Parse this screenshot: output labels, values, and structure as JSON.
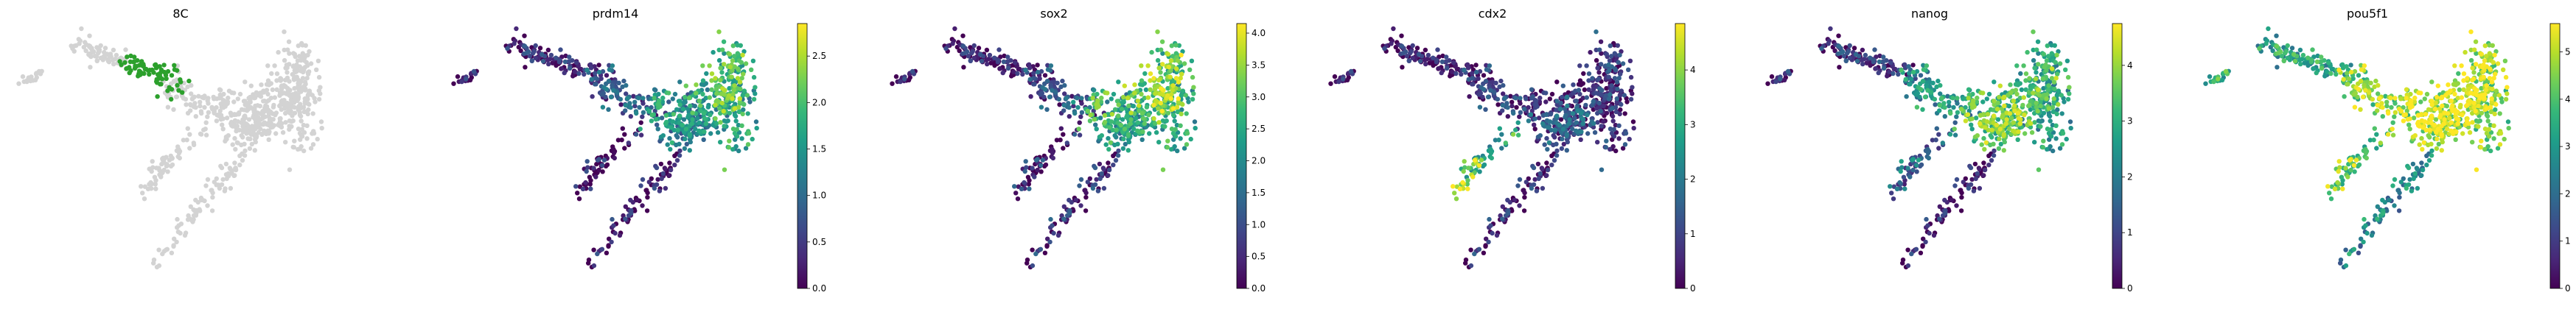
{
  "figure": {
    "colormap": "viridis",
    "background_color": "#ffffff",
    "unexpressed_color": "#d3d3d3",
    "highlight_color": "#2ca02c"
  },
  "chart_data": [
    {
      "type": "scatter",
      "title": "8C",
      "categorical": true,
      "legend": "none",
      "grid": false,
      "axes": "off"
    },
    {
      "type": "scatter",
      "title": "prdm14",
      "colorbar": {
        "ticks": [
          "0.0",
          "0.5",
          "1.0",
          "1.5",
          "2.0",
          "2.5"
        ],
        "tick_values": [
          0,
          0.5,
          1.0,
          1.5,
          2.0,
          2.5
        ],
        "range": [
          0,
          2.85
        ]
      },
      "grid": false,
      "axes": "off"
    },
    {
      "type": "scatter",
      "title": "sox2",
      "colorbar": {
        "ticks": [
          "0.0",
          "0.5",
          "1.0",
          "1.5",
          "2.0",
          "2.5",
          "3.0",
          "3.5",
          "4.0"
        ],
        "tick_values": [
          0,
          0.5,
          1.0,
          1.5,
          2.0,
          2.5,
          3.0,
          3.5,
          4.0
        ],
        "range": [
          0,
          4.15
        ]
      },
      "grid": false,
      "axes": "off"
    },
    {
      "type": "scatter",
      "title": "cdx2",
      "colorbar": {
        "ticks": [
          "0",
          "1",
          "2",
          "3",
          "4"
        ],
        "tick_values": [
          0,
          1,
          2,
          3,
          4
        ],
        "range": [
          0,
          4.85
        ]
      },
      "grid": false,
      "axes": "off"
    },
    {
      "type": "scatter",
      "title": "nanog",
      "colorbar": {
        "ticks": [
          "0",
          "1",
          "2",
          "3",
          "4"
        ],
        "tick_values": [
          0,
          1,
          2,
          3,
          4
        ],
        "range": [
          0,
          4.75
        ]
      },
      "grid": false,
      "axes": "off"
    },
    {
      "type": "scatter",
      "title": "pou5f1",
      "colorbar": {
        "ticks": [
          "0",
          "1",
          "2",
          "3",
          "4",
          "5"
        ],
        "tick_values": [
          0,
          1,
          2,
          3,
          4,
          5
        ],
        "range": [
          0,
          5.6
        ]
      },
      "grid": false,
      "axes": "off"
    }
  ]
}
